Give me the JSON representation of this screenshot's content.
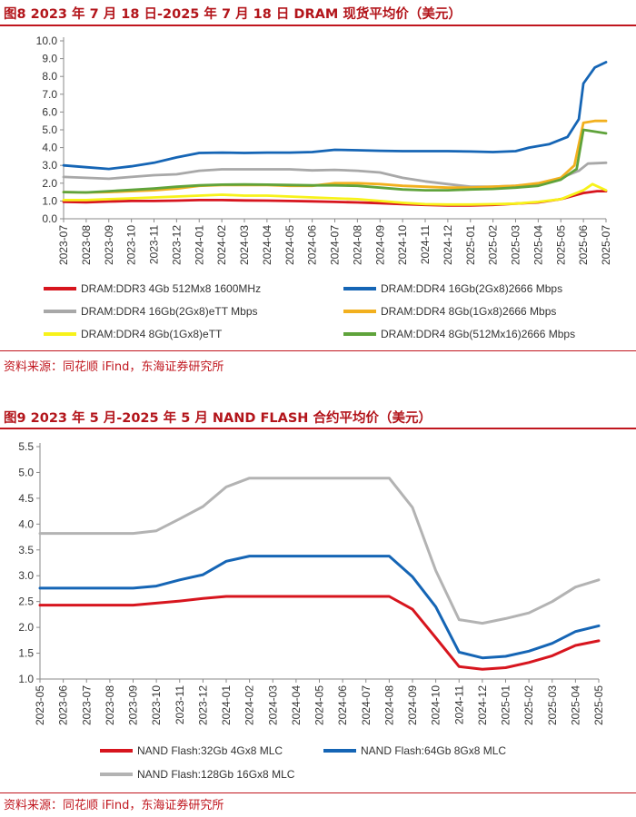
{
  "figure8": {
    "title": "图8  2023 年 7 月 18 日-2025 年 7 月 18 日 DRAM 现货平均价（美元）",
    "source": "资料来源：同花顺 iFind，东海证券研究所"
  },
  "figure9": {
    "title": "图9  2023 年 5 月-2025 年 5 月 NAND FLASH 合约平均价（美元）",
    "source": "资料来源：同花顺 iFind，东海证券研究所"
  },
  "chart_data": [
    {
      "type": "line",
      "ylim": [
        0,
        10
      ],
      "y_ticks": [
        "0.0",
        "1.0",
        "2.0",
        "3.0",
        "4.0",
        "5.0",
        "6.0",
        "7.0",
        "8.0",
        "9.0",
        "10.0"
      ],
      "x_tick_labels": [
        "2023-07",
        "2023-08",
        "2023-09",
        "2023-10",
        "2023-11",
        "2023-12",
        "2024-01",
        "2024-02",
        "2024-03",
        "2024-04",
        "2024-05",
        "2024-06",
        "2024-07",
        "2024-08",
        "2024-09",
        "2024-10",
        "2024-11",
        "2024-12",
        "2025-01",
        "2025-02",
        "2025-03",
        "2025-04",
        "2025-05",
        "2025-06",
        "2025-07"
      ],
      "grid": false,
      "legend_position": "bottom",
      "series": [
        {
          "name": "DRAM:DDR3 4Gb 512Mx8 1600MHz",
          "color": "#d7151e",
          "points": [
            [
              0,
              0.95
            ],
            [
              1,
              0.93
            ],
            [
              2,
              0.97
            ],
            [
              3,
              1.0
            ],
            [
              4,
              1.0
            ],
            [
              5,
              1.02
            ],
            [
              6,
              1.05
            ],
            [
              7,
              1.05
            ],
            [
              8,
              1.03
            ],
            [
              9,
              1.02
            ],
            [
              10,
              1.0
            ],
            [
              11,
              0.98
            ],
            [
              12,
              0.95
            ],
            [
              13,
              0.92
            ],
            [
              14,
              0.88
            ],
            [
              15,
              0.82
            ],
            [
              16,
              0.78
            ],
            [
              17,
              0.75
            ],
            [
              18,
              0.75
            ],
            [
              19,
              0.78
            ],
            [
              20,
              0.85
            ],
            [
              21,
              0.92
            ],
            [
              22,
              1.1
            ],
            [
              23,
              1.45
            ],
            [
              23.6,
              1.55
            ],
            [
              24,
              1.55
            ]
          ]
        },
        {
          "name": "DRAM:DDR4 16Gb(2Gx8)2666 Mbps",
          "color": "#1565b5",
          "points": [
            [
              0,
              3.0
            ],
            [
              1,
              2.9
            ],
            [
              2,
              2.8
            ],
            [
              3,
              2.95
            ],
            [
              4,
              3.15
            ],
            [
              5,
              3.45
            ],
            [
              6,
              3.7
            ],
            [
              7,
              3.72
            ],
            [
              8,
              3.7
            ],
            [
              9,
              3.72
            ],
            [
              10,
              3.72
            ],
            [
              11,
              3.75
            ],
            [
              12,
              3.88
            ],
            [
              13,
              3.85
            ],
            [
              14,
              3.82
            ],
            [
              15,
              3.8
            ],
            [
              16,
              3.8
            ],
            [
              17,
              3.8
            ],
            [
              18,
              3.78
            ],
            [
              19,
              3.75
            ],
            [
              20,
              3.8
            ],
            [
              20.6,
              4.0
            ],
            [
              21.5,
              4.2
            ],
            [
              22.3,
              4.6
            ],
            [
              22.8,
              5.6
            ],
            [
              23,
              7.6
            ],
            [
              23.5,
              8.5
            ],
            [
              24,
              8.8
            ]
          ]
        },
        {
          "name": "DRAM:DDR4 16Gb(2Gx8)eTT Mbps",
          "color": "#a8a8a8",
          "points": [
            [
              0,
              2.35
            ],
            [
              1,
              2.3
            ],
            [
              2,
              2.25
            ],
            [
              3,
              2.35
            ],
            [
              4,
              2.45
            ],
            [
              5,
              2.5
            ],
            [
              6,
              2.7
            ],
            [
              7,
              2.78
            ],
            [
              8,
              2.78
            ],
            [
              9,
              2.78
            ],
            [
              10,
              2.78
            ],
            [
              11,
              2.72
            ],
            [
              12,
              2.75
            ],
            [
              13,
              2.7
            ],
            [
              14,
              2.6
            ],
            [
              15,
              2.3
            ],
            [
              16,
              2.1
            ],
            [
              17,
              1.95
            ],
            [
              18,
              1.8
            ],
            [
              19,
              1.8
            ],
            [
              20,
              1.85
            ],
            [
              21,
              1.95
            ],
            [
              22,
              2.3
            ],
            [
              22.8,
              2.7
            ],
            [
              23.2,
              3.1
            ],
            [
              24,
              3.15
            ]
          ]
        },
        {
          "name": "DRAM:DDR4 8Gb(1Gx8)2666 Mbps",
          "color": "#f2b01e",
          "points": [
            [
              0,
              1.5
            ],
            [
              1,
              1.48
            ],
            [
              2,
              1.5
            ],
            [
              3,
              1.55
            ],
            [
              4,
              1.6
            ],
            [
              5,
              1.7
            ],
            [
              6,
              1.85
            ],
            [
              7,
              1.9
            ],
            [
              8,
              1.9
            ],
            [
              9,
              1.9
            ],
            [
              10,
              1.85
            ],
            [
              11,
              1.85
            ],
            [
              12,
              2.0
            ],
            [
              13,
              2.0
            ],
            [
              14,
              1.95
            ],
            [
              15,
              1.85
            ],
            [
              16,
              1.8
            ],
            [
              17,
              1.75
            ],
            [
              18,
              1.75
            ],
            [
              19,
              1.8
            ],
            [
              20,
              1.85
            ],
            [
              21,
              2.0
            ],
            [
              22,
              2.3
            ],
            [
              22.6,
              3.0
            ],
            [
              23,
              5.4
            ],
            [
              23.5,
              5.5
            ],
            [
              24,
              5.5
            ]
          ]
        },
        {
          "name": "DRAM:DDR4 8Gb(1Gx8)eTT",
          "color": "#f7f21a",
          "points": [
            [
              0,
              1.05
            ],
            [
              1,
              1.05
            ],
            [
              2,
              1.1
            ],
            [
              3,
              1.15
            ],
            [
              4,
              1.2
            ],
            [
              5,
              1.25
            ],
            [
              6,
              1.3
            ],
            [
              7,
              1.35
            ],
            [
              8,
              1.3
            ],
            [
              9,
              1.3
            ],
            [
              10,
              1.25
            ],
            [
              11,
              1.2
            ],
            [
              12,
              1.15
            ],
            [
              13,
              1.1
            ],
            [
              14,
              1.0
            ],
            [
              15,
              0.9
            ],
            [
              16,
              0.82
            ],
            [
              17,
              0.8
            ],
            [
              18,
              0.8
            ],
            [
              19,
              0.82
            ],
            [
              20,
              0.85
            ],
            [
              21,
              0.95
            ],
            [
              22,
              1.1
            ],
            [
              23,
              1.6
            ],
            [
              23.4,
              1.95
            ],
            [
              24,
              1.6
            ]
          ]
        },
        {
          "name": "DRAM:DDR4 8Gb(512Mx16)2666 Mbps",
          "color": "#5fa33b",
          "points": [
            [
              0,
              1.5
            ],
            [
              1,
              1.48
            ],
            [
              2,
              1.55
            ],
            [
              3,
              1.62
            ],
            [
              4,
              1.7
            ],
            [
              5,
              1.8
            ],
            [
              6,
              1.88
            ],
            [
              7,
              1.92
            ],
            [
              8,
              1.93
            ],
            [
              9,
              1.92
            ],
            [
              10,
              1.9
            ],
            [
              11,
              1.88
            ],
            [
              12,
              1.88
            ],
            [
              13,
              1.85
            ],
            [
              14,
              1.75
            ],
            [
              15,
              1.65
            ],
            [
              16,
              1.6
            ],
            [
              17,
              1.6
            ],
            [
              18,
              1.65
            ],
            [
              19,
              1.68
            ],
            [
              20,
              1.75
            ],
            [
              21,
              1.85
            ],
            [
              22,
              2.2
            ],
            [
              22.7,
              2.8
            ],
            [
              23,
              5.0
            ],
            [
              24,
              4.8
            ]
          ]
        }
      ]
    },
    {
      "type": "line",
      "ylim": [
        1.0,
        5.5
      ],
      "y_ticks": [
        "1.0",
        "1.5",
        "2.0",
        "2.5",
        "3.0",
        "3.5",
        "4.0",
        "4.5",
        "5.0",
        "5.5"
      ],
      "categories": [
        "2023-05",
        "2023-06",
        "2023-07",
        "2023-08",
        "2023-09",
        "2023-10",
        "2023-11",
        "2023-12",
        "2024-01",
        "2024-02",
        "2024-03",
        "2024-04",
        "2024-05",
        "2024-06",
        "2024-07",
        "2024-08",
        "2024-09",
        "2024-10",
        "2024-11",
        "2024-12",
        "2025-01",
        "2025-02",
        "2025-03",
        "2025-04",
        "2025-05"
      ],
      "grid": false,
      "legend_position": "bottom",
      "series": [
        {
          "name": "NAND Flash:32Gb 4Gx8 MLC",
          "color": "#d7151e",
          "values": [
            2.43,
            2.43,
            2.43,
            2.43,
            2.43,
            2.47,
            2.51,
            2.56,
            2.6,
            2.6,
            2.6,
            2.6,
            2.6,
            2.6,
            2.6,
            2.6,
            2.35,
            1.8,
            1.24,
            1.19,
            1.22,
            1.32,
            1.45,
            1.65,
            1.74
          ]
        },
        {
          "name": "NAND Flash:64Gb 8Gx8 MLC",
          "color": "#1565b5",
          "values": [
            2.76,
            2.76,
            2.76,
            2.76,
            2.76,
            2.8,
            2.92,
            3.02,
            3.28,
            3.38,
            3.38,
            3.38,
            3.38,
            3.38,
            3.38,
            3.38,
            2.98,
            2.4,
            1.52,
            1.41,
            1.44,
            1.54,
            1.69,
            1.92,
            2.03
          ]
        },
        {
          "name": "NAND Flash:128Gb 16Gx8 MLC",
          "color": "#b3b3b3",
          "values": [
            3.82,
            3.82,
            3.82,
            3.82,
            3.82,
            3.87,
            4.1,
            4.34,
            4.72,
            4.89,
            4.89,
            4.89,
            4.89,
            4.89,
            4.89,
            4.89,
            4.32,
            3.1,
            2.15,
            2.08,
            2.17,
            2.28,
            2.5,
            2.78,
            2.92
          ]
        }
      ]
    }
  ]
}
